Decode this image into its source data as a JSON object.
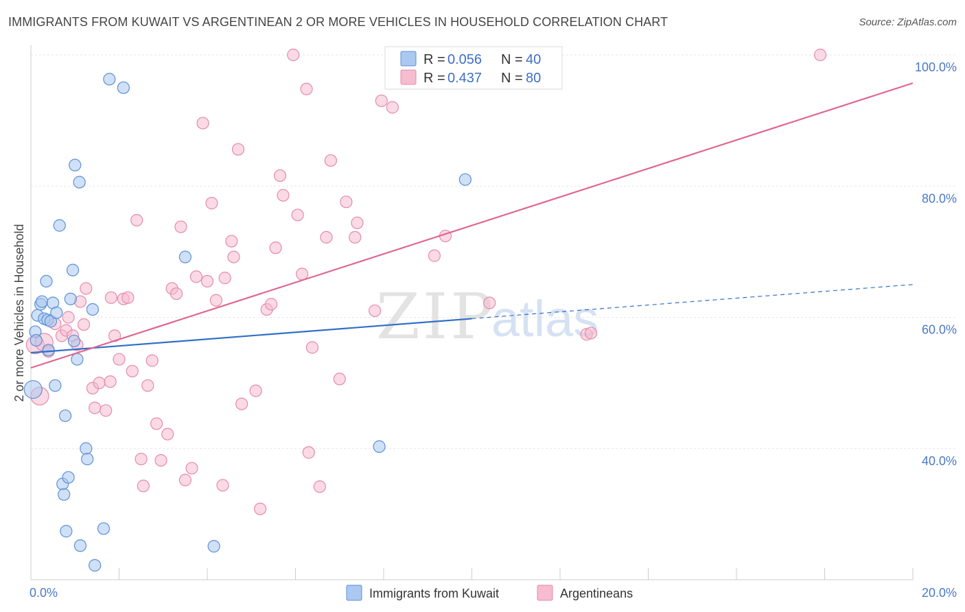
{
  "header": {
    "title": "IMMIGRANTS FROM KUWAIT VS ARGENTINEAN 2 OR MORE VEHICLES IN HOUSEHOLD CORRELATION CHART",
    "source": "Source: ZipAtlas.com"
  },
  "watermark": {
    "zip": "ZIP",
    "atlas": "atlas"
  },
  "colors": {
    "kuwait_fill": "#aac8f0",
    "kuwait_stroke": "#5b8fd6",
    "kuwait_line": "#2f6fc9",
    "arg_fill": "#f6bcd0",
    "arg_stroke": "#e58aa9",
    "arg_line": "#e0668f",
    "tick_label": "#4a79c9",
    "grid": "#e6e6e6"
  },
  "legend": {
    "rows": [
      {
        "r_label": "R = ",
        "r_value": "0.056",
        "n_label": "N = ",
        "n_value": "40"
      },
      {
        "r_label": "R = ",
        "r_value": "0.437",
        "n_label": "N = ",
        "n_value": "80"
      }
    ]
  },
  "chart_data": {
    "type": "scatter",
    "ylabel": "2 or more Vehicles in Household",
    "xlim": [
      0,
      20
    ],
    "ylim": [
      20,
      100
    ],
    "x_tick_labels": [
      {
        "value": 0,
        "label": "0.0%"
      },
      {
        "value": 20,
        "label": "20.0%"
      }
    ],
    "y_tick_labels": [
      {
        "value": 40,
        "label": "40.0%"
      },
      {
        "value": 60,
        "label": "60.0%"
      },
      {
        "value": 80,
        "label": "80.0%"
      },
      {
        "value": 100,
        "label": "100.0%"
      }
    ],
    "y_gridlines": [
      40,
      60,
      80,
      100
    ],
    "x_minor_ticks": [
      2,
      4,
      6,
      8,
      10,
      12,
      14,
      16,
      18
    ],
    "series": [
      {
        "name": "Immigrants from Kuwait",
        "color": "#5b8fd6",
        "points": [
          [
            0.05,
            49.0
          ],
          [
            0.1,
            57.8
          ],
          [
            0.12,
            56.5
          ],
          [
            0.15,
            60.3
          ],
          [
            0.22,
            62.0
          ],
          [
            0.25,
            62.4
          ],
          [
            0.3,
            59.8
          ],
          [
            0.35,
            65.5
          ],
          [
            0.38,
            59.6
          ],
          [
            0.4,
            55.0
          ],
          [
            0.45,
            59.4
          ],
          [
            0.5,
            62.2
          ],
          [
            0.55,
            49.6
          ],
          [
            0.58,
            60.7
          ],
          [
            0.65,
            74.0
          ],
          [
            0.72,
            34.6
          ],
          [
            0.75,
            33.0
          ],
          [
            0.78,
            45.0
          ],
          [
            0.8,
            27.4
          ],
          [
            0.85,
            35.6
          ],
          [
            0.9,
            62.8
          ],
          [
            0.95,
            67.2
          ],
          [
            0.98,
            56.4
          ],
          [
            1.0,
            83.2
          ],
          [
            1.05,
            53.6
          ],
          [
            1.1,
            80.6
          ],
          [
            1.12,
            25.2
          ],
          [
            1.25,
            40.0
          ],
          [
            1.28,
            38.4
          ],
          [
            1.4,
            61.2
          ],
          [
            1.45,
            22.2
          ],
          [
            1.65,
            27.8
          ],
          [
            1.78,
            96.3
          ],
          [
            2.1,
            95.0
          ],
          [
            3.5,
            69.2
          ],
          [
            4.15,
            25.1
          ],
          [
            7.9,
            40.3
          ],
          [
            9.85,
            81.0
          ]
        ],
        "trend": {
          "x_start": 0,
          "y_start": 54.6,
          "x_solid_end": 10.0,
          "y_solid_end": 59.8,
          "x_end": 20,
          "y_end": 65.0
        }
      },
      {
        "name": "Argentineans",
        "color": "#e58aa9",
        "points": [
          [
            0.1,
            55.8
          ],
          [
            0.2,
            48.0
          ],
          [
            0.3,
            56.2
          ],
          [
            0.4,
            54.8
          ],
          [
            0.55,
            59.0
          ],
          [
            0.7,
            57.2
          ],
          [
            0.8,
            58.0
          ],
          [
            0.85,
            60.0
          ],
          [
            0.95,
            57.2
          ],
          [
            1.05,
            55.8
          ],
          [
            1.12,
            62.4
          ],
          [
            1.2,
            58.9
          ],
          [
            1.25,
            64.4
          ],
          [
            1.4,
            49.2
          ],
          [
            1.45,
            46.2
          ],
          [
            1.55,
            50.0
          ],
          [
            1.7,
            45.8
          ],
          [
            1.8,
            50.2
          ],
          [
            1.82,
            63.0
          ],
          [
            1.9,
            57.2
          ],
          [
            2.0,
            53.6
          ],
          [
            2.1,
            62.8
          ],
          [
            2.2,
            63.0
          ],
          [
            2.3,
            51.8
          ],
          [
            2.4,
            74.8
          ],
          [
            2.5,
            38.4
          ],
          [
            2.55,
            34.3
          ],
          [
            2.65,
            49.6
          ],
          [
            2.75,
            53.4
          ],
          [
            2.85,
            43.8
          ],
          [
            2.95,
            38.2
          ],
          [
            3.1,
            42.2
          ],
          [
            3.2,
            64.4
          ],
          [
            3.3,
            63.6
          ],
          [
            3.4,
            73.8
          ],
          [
            3.5,
            35.2
          ],
          [
            3.65,
            37.0
          ],
          [
            3.75,
            66.2
          ],
          [
            3.9,
            89.6
          ],
          [
            4.0,
            65.5
          ],
          [
            4.1,
            77.4
          ],
          [
            4.2,
            62.6
          ],
          [
            4.35,
            34.4
          ],
          [
            4.4,
            66.0
          ],
          [
            4.55,
            71.6
          ],
          [
            4.6,
            69.2
          ],
          [
            4.7,
            85.6
          ],
          [
            4.78,
            46.8
          ],
          [
            5.1,
            48.8
          ],
          [
            5.2,
            30.8
          ],
          [
            5.35,
            61.2
          ],
          [
            5.45,
            62.0
          ],
          [
            5.55,
            70.6
          ],
          [
            5.65,
            81.6
          ],
          [
            5.72,
            78.6
          ],
          [
            5.95,
            100.0
          ],
          [
            6.05,
            75.6
          ],
          [
            6.15,
            66.6
          ],
          [
            6.25,
            94.8
          ],
          [
            6.3,
            39.4
          ],
          [
            6.38,
            55.4
          ],
          [
            6.55,
            34.2
          ],
          [
            6.7,
            72.2
          ],
          [
            6.8,
            83.9
          ],
          [
            7.0,
            50.6
          ],
          [
            7.15,
            77.6
          ],
          [
            7.35,
            72.2
          ],
          [
            7.4,
            74.4
          ],
          [
            7.8,
            61.0
          ],
          [
            7.95,
            93.0
          ],
          [
            8.2,
            92.0
          ],
          [
            9.15,
            69.4
          ],
          [
            9.4,
            72.4
          ],
          [
            10.4,
            62.2
          ],
          [
            12.6,
            57.4
          ],
          [
            12.7,
            57.6
          ],
          [
            17.9,
            100.0
          ]
        ],
        "trend": {
          "x_start": 0,
          "y_start": 52.3,
          "x_end": 20,
          "y_end": 95.7
        }
      }
    ]
  }
}
